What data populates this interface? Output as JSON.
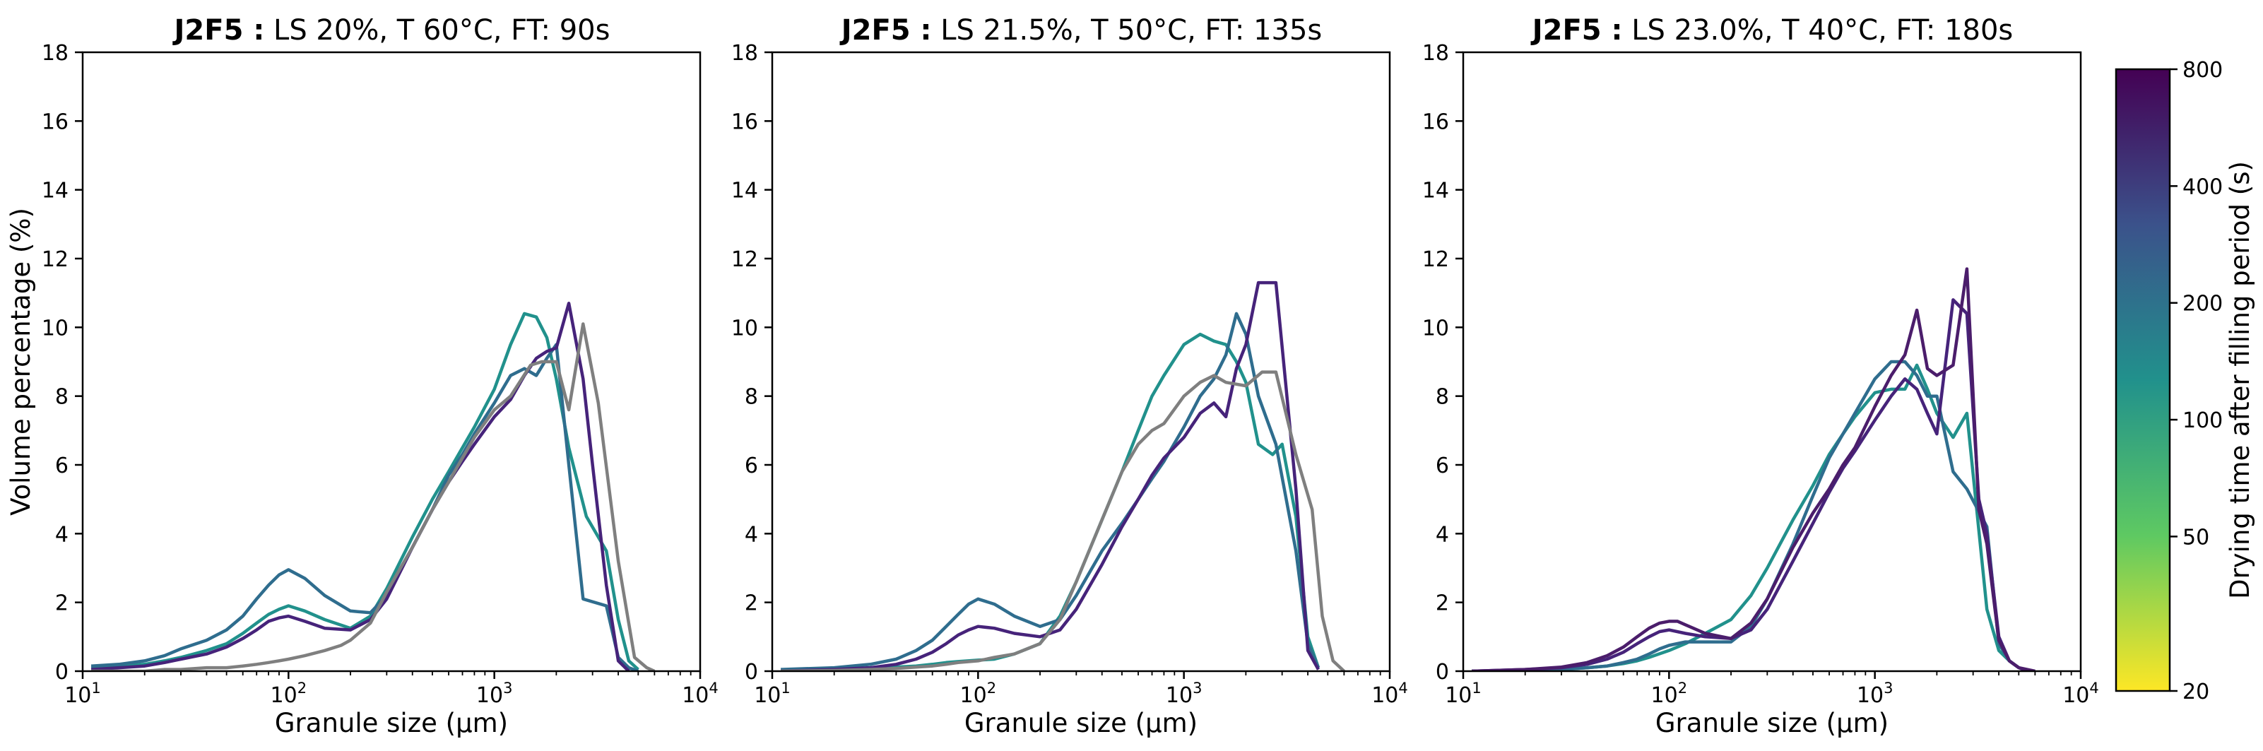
{
  "chart_data": {
    "type": "line",
    "xscale": "log",
    "xlim": [
      10,
      10000
    ],
    "ylim": [
      0,
      18
    ],
    "xlabel": "Granule size (µm)",
    "ylabel": "Volume percentage (%)",
    "x_tick_labels": [
      {
        "base": "10",
        "exp": "1",
        "value": 10
      },
      {
        "base": "10",
        "exp": "2",
        "value": 100
      },
      {
        "base": "10",
        "exp": "3",
        "value": 1000
      },
      {
        "base": "10",
        "exp": "4",
        "value": 10000
      }
    ],
    "y_ticks": [
      0,
      2,
      4,
      6,
      8,
      10,
      12,
      14,
      16,
      18
    ],
    "colorbar": {
      "label": "Drying time after filling period (s)",
      "scale": "log",
      "range": [
        20,
        800
      ],
      "ticks": [
        20,
        50,
        100,
        200,
        400,
        800
      ],
      "tick_labels": [
        "20",
        "50",
        "100",
        "200",
        "400",
        "800"
      ],
      "colormap_stops": [
        "#fde725",
        "#5ec962",
        "#21918c",
        "#3b528b",
        "#440154"
      ]
    },
    "panels": [
      {
        "title_bold": "J2F5 :",
        "title_rest": " LS 20%, T 60°C, FT: 90s",
        "series": [
          {
            "name": "series-1",
            "color": "#21918c",
            "x": [
              11,
              15,
              20,
              25,
              30,
              40,
              50,
              60,
              70,
              80,
              90,
              100,
              120,
              150,
              200,
              250,
              300,
              400,
              500,
              600,
              700,
              800,
              1000,
              1200,
              1400,
              1600,
              1800,
              2000,
              2300,
              2800,
              3500,
              4000,
              4500,
              5000
            ],
            "y": [
              0.1,
              0.15,
              0.2,
              0.3,
              0.4,
              0.6,
              0.8,
              1.1,
              1.4,
              1.65,
              1.8,
              1.9,
              1.75,
              1.5,
              1.25,
              1.6,
              2.4,
              3.9,
              5.0,
              5.8,
              6.5,
              7.1,
              8.2,
              9.5,
              10.4,
              10.3,
              9.7,
              8.5,
              6.5,
              4.5,
              3.5,
              1.5,
              0.3,
              0.05
            ]
          },
          {
            "name": "series-2",
            "color": "#2f6d8e",
            "x": [
              11,
              15,
              20,
              25,
              30,
              40,
              50,
              60,
              70,
              80,
              90,
              100,
              120,
              150,
              200,
              250,
              300,
              400,
              500,
              600,
              700,
              800,
              1000,
              1200,
              1400,
              1600,
              1800,
              2000,
              2300,
              2700,
              3500,
              4000,
              4500,
              5000
            ],
            "y": [
              0.15,
              0.2,
              0.3,
              0.45,
              0.65,
              0.9,
              1.2,
              1.6,
              2.1,
              2.5,
              2.8,
              2.95,
              2.7,
              2.2,
              1.75,
              1.7,
              2.2,
              3.6,
              4.7,
              5.7,
              6.3,
              6.9,
              7.8,
              8.6,
              8.8,
              8.6,
              9.1,
              9.5,
              6.0,
              2.1,
              1.9,
              0.4,
              0.1,
              0.0
            ]
          },
          {
            "name": "series-3",
            "color": "#46237a",
            "x": [
              11,
              15,
              20,
              25,
              30,
              40,
              50,
              60,
              70,
              80,
              90,
              100,
              120,
              150,
              200,
              250,
              300,
              400,
              500,
              600,
              700,
              800,
              1000,
              1200,
              1400,
              1600,
              1800,
              2000,
              2300,
              2700,
              3000,
              3500,
              4000,
              4500
            ],
            "y": [
              0.05,
              0.1,
              0.15,
              0.25,
              0.35,
              0.5,
              0.7,
              0.95,
              1.2,
              1.45,
              1.55,
              1.6,
              1.45,
              1.25,
              1.2,
              1.5,
              2.1,
              3.6,
              4.7,
              5.5,
              6.1,
              6.6,
              7.4,
              7.9,
              8.6,
              9.1,
              9.3,
              9.4,
              10.7,
              8.5,
              6.0,
              2.5,
              0.3,
              0.0
            ]
          },
          {
            "name": "series-4",
            "color": "#7f7f7f",
            "x": [
              11,
              15,
              20,
              25,
              30,
              40,
              50,
              60,
              70,
              80,
              90,
              100,
              120,
              150,
              180,
              200,
              250,
              300,
              400,
              500,
              600,
              700,
              800,
              1000,
              1200,
              1500,
              1700,
              2000,
              2300,
              2700,
              3200,
              4000,
              4800,
              5500,
              6000
            ],
            "y": [
              0.0,
              0.0,
              0.0,
              0.05,
              0.05,
              0.1,
              0.1,
              0.15,
              0.2,
              0.25,
              0.3,
              0.35,
              0.45,
              0.6,
              0.75,
              0.9,
              1.4,
              2.3,
              3.6,
              4.7,
              5.5,
              6.2,
              6.8,
              7.6,
              8.0,
              8.9,
              9.0,
              9.0,
              7.6,
              10.1,
              7.8,
              3.2,
              0.4,
              0.1,
              0.0
            ]
          }
        ]
      },
      {
        "title_bold": "J2F5 :",
        "title_rest": " LS 21.5%, T 50°C, FT: 135s",
        "series": [
          {
            "name": "series-1",
            "color": "#21918c",
            "x": [
              11,
              20,
              30,
              40,
              50,
              60,
              70,
              80,
              100,
              120,
              150,
              200,
              250,
              300,
              400,
              500,
              600,
              700,
              800,
              1000,
              1200,
              1400,
              1600,
              1800,
              2000,
              2300,
              2700,
              3000,
              3500,
              4000,
              4500
            ],
            "y": [
              0.0,
              0.05,
              0.1,
              0.12,
              0.15,
              0.2,
              0.25,
              0.28,
              0.32,
              0.35,
              0.5,
              0.8,
              1.6,
              2.6,
              4.4,
              5.8,
              7.0,
              8.0,
              8.6,
              9.5,
              9.8,
              9.6,
              9.5,
              9.0,
              8.4,
              6.6,
              6.3,
              6.6,
              4.5,
              1.0,
              0.1
            ]
          },
          {
            "name": "series-2",
            "color": "#2f6d8e",
            "x": [
              11,
              20,
              30,
              40,
              50,
              60,
              70,
              80,
              90,
              100,
              120,
              150,
              200,
              250,
              300,
              400,
              500,
              600,
              700,
              800,
              1000,
              1200,
              1400,
              1600,
              1800,
              2000,
              2300,
              2800,
              3500,
              4000,
              4500
            ],
            "y": [
              0.05,
              0.1,
              0.2,
              0.35,
              0.6,
              0.9,
              1.3,
              1.65,
              1.95,
              2.1,
              1.95,
              1.6,
              1.3,
              1.5,
              2.2,
              3.5,
              4.3,
              5.0,
              5.6,
              6.1,
              7.1,
              8.0,
              8.5,
              9.2,
              10.4,
              9.8,
              8.0,
              6.6,
              3.5,
              0.8,
              0.1
            ]
          },
          {
            "name": "series-3",
            "color": "#46237a",
            "x": [
              11,
              20,
              30,
              40,
              50,
              60,
              70,
              80,
              90,
              100,
              120,
              150,
              200,
              250,
              300,
              400,
              500,
              600,
              700,
              800,
              1000,
              1200,
              1400,
              1600,
              1800,
              2000,
              2300,
              2800,
              3500,
              4000,
              4500
            ],
            "y": [
              0.0,
              0.05,
              0.1,
              0.2,
              0.35,
              0.55,
              0.8,
              1.05,
              1.2,
              1.3,
              1.25,
              1.1,
              1.0,
              1.2,
              1.8,
              3.1,
              4.2,
              5.0,
              5.7,
              6.2,
              6.8,
              7.5,
              7.8,
              7.4,
              8.8,
              9.5,
              11.3,
              11.3,
              5.3,
              0.6,
              0.05
            ]
          },
          {
            "name": "series-4",
            "color": "#7f7f7f",
            "x": [
              11,
              20,
              30,
              40,
              50,
              60,
              70,
              80,
              100,
              120,
              150,
              200,
              250,
              300,
              400,
              500,
              600,
              700,
              800,
              1000,
              1200,
              1400,
              1600,
              2000,
              2400,
              2800,
              3500,
              4200,
              4700,
              5300,
              6000
            ],
            "y": [
              0.0,
              0.02,
              0.05,
              0.08,
              0.12,
              0.15,
              0.2,
              0.25,
              0.3,
              0.4,
              0.5,
              0.8,
              1.5,
              2.6,
              4.4,
              5.8,
              6.6,
              7.0,
              7.2,
              8.0,
              8.4,
              8.6,
              8.4,
              8.3,
              8.7,
              8.7,
              6.3,
              4.7,
              1.6,
              0.3,
              0.0
            ]
          }
        ]
      },
      {
        "title_bold": "J2F5 :",
        "title_rest": " LS 23.0%, T 40°C, FT: 180s",
        "series": [
          {
            "name": "series-1",
            "color": "#21918c",
            "x": [
              11,
              20,
              30,
              40,
              50,
              60,
              70,
              80,
              100,
              120,
              150,
              200,
              250,
              300,
              400,
              500,
              600,
              700,
              800,
              1000,
              1200,
              1400,
              1600,
              1800,
              2000,
              2400,
              2800,
              3500,
              4000,
              4500,
              5000
            ],
            "y": [
              0.0,
              0.02,
              0.05,
              0.1,
              0.15,
              0.22,
              0.3,
              0.4,
              0.6,
              0.8,
              1.1,
              1.5,
              2.2,
              3.0,
              4.4,
              5.4,
              6.3,
              6.9,
              7.4,
              8.1,
              8.2,
              8.2,
              8.9,
              8.2,
              7.5,
              6.8,
              7.5,
              1.8,
              0.6,
              0.3,
              0.1
            ]
          },
          {
            "name": "series-2",
            "color": "#2f6d8e",
            "x": [
              11,
              20,
              30,
              40,
              50,
              60,
              70,
              80,
              90,
              100,
              120,
              150,
              200,
              250,
              300,
              400,
              500,
              600,
              700,
              800,
              1000,
              1200,
              1400,
              1600,
              1800,
              2000,
              2400,
              2800,
              3500,
              4000,
              4500,
              5000
            ],
            "y": [
              0.0,
              0.02,
              0.05,
              0.1,
              0.15,
              0.25,
              0.35,
              0.5,
              0.65,
              0.75,
              0.85,
              0.85,
              0.85,
              1.3,
              2.1,
              3.7,
              5.1,
              6.2,
              6.9,
              7.5,
              8.5,
              9.0,
              9.0,
              8.6,
              8.0,
              8.0,
              5.8,
              5.3,
              4.2,
              0.8,
              0.3,
              0.1
            ]
          },
          {
            "name": "series-3",
            "color": "#46237a",
            "x": [
              11,
              20,
              30,
              40,
              50,
              60,
              70,
              80,
              90,
              100,
              120,
              150,
              200,
              250,
              300,
              400,
              500,
              600,
              700,
              800,
              1000,
              1200,
              1400,
              1600,
              1800,
              2000,
              2400,
              2800,
              3200,
              3500,
              4000,
              4500,
              5000,
              5500
            ],
            "y": [
              0.0,
              0.05,
              0.1,
              0.2,
              0.35,
              0.55,
              0.8,
              1.0,
              1.15,
              1.2,
              1.1,
              1.0,
              0.95,
              1.2,
              1.8,
              3.2,
              4.3,
              5.2,
              5.9,
              6.4,
              7.3,
              8.0,
              8.5,
              8.2,
              7.5,
              6.9,
              10.8,
              10.4,
              5.0,
              4.0,
              1.0,
              0.3,
              0.1,
              0.0
            ]
          },
          {
            "name": "series-4",
            "color": "#4b1d6b",
            "x": [
              11,
              20,
              30,
              40,
              50,
              60,
              70,
              80,
              90,
              100,
              110,
              120,
              150,
              200,
              250,
              300,
              400,
              500,
              600,
              700,
              800,
              1000,
              1200,
              1400,
              1600,
              1800,
              2000,
              2400,
              2800,
              3200,
              3500,
              4000,
              4500,
              5000,
              6000
            ],
            "y": [
              0.0,
              0.05,
              0.12,
              0.25,
              0.45,
              0.7,
              1.0,
              1.25,
              1.4,
              1.45,
              1.45,
              1.35,
              1.1,
              0.95,
              1.4,
              2.1,
              3.6,
              4.6,
              5.3,
              6.0,
              6.5,
              7.7,
              8.6,
              9.2,
              10.5,
              8.8,
              8.6,
              8.9,
              11.7,
              4.7,
              3.7,
              0.9,
              0.3,
              0.1,
              0.0
            ]
          }
        ]
      }
    ]
  }
}
